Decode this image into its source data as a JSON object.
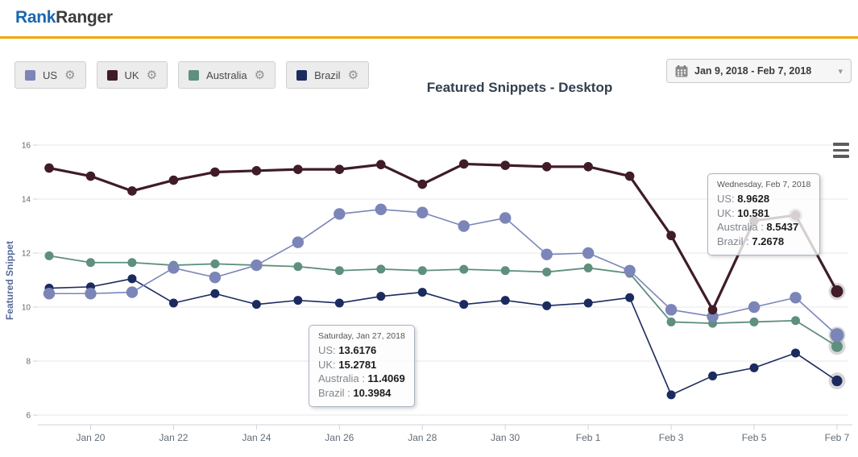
{
  "header": {
    "logo_part1": "Rank",
    "logo_part2": "Ranger"
  },
  "colors": {
    "accent_yellow": "#f3a60a",
    "logo_blue": "#1a67b1",
    "us": "#7b85b8",
    "uk": "#3f1c27",
    "australia": "#5f8f7e",
    "brazil": "#1b2b5f"
  },
  "icons": {
    "gear": "⚙",
    "caret": "▾"
  },
  "legend": [
    {
      "label": "US",
      "color": "#7b85b8"
    },
    {
      "label": "UK",
      "color": "#3f1c27"
    },
    {
      "label": "Australia",
      "color": "#5f8f7e"
    },
    {
      "label": "Brazil",
      "color": "#1b2b5f"
    }
  ],
  "date_picker": {
    "label": "Jan 9, 2018 - Feb 7, 2018"
  },
  "chart_data": {
    "type": "line",
    "title": "Featured Snippets - Desktop",
    "ylabel": "Featured Snippet",
    "ylim": [
      6,
      16
    ],
    "grid": true,
    "y_ticks": [
      16,
      14,
      12,
      10,
      8,
      6
    ],
    "x_tick_labels": [
      "Jan 20",
      "Jan 22",
      "Jan 24",
      "Jan 26",
      "Jan 28",
      "Jan 30",
      "Feb 1",
      "Feb 3",
      "Feb 5",
      "Feb 7"
    ],
    "categories": [
      "Jan 19",
      "Jan 20",
      "Jan 21",
      "Jan 22",
      "Jan 23",
      "Jan 24",
      "Jan 25",
      "Jan 26",
      "Jan 27",
      "Jan 28",
      "Jan 29",
      "Jan 30",
      "Jan 31",
      "Feb 1",
      "Feb 2",
      "Feb 3",
      "Feb 4",
      "Feb 5",
      "Feb 6",
      "Feb 7"
    ],
    "series": [
      {
        "name": "Australia",
        "color": "#5f8f7e",
        "values": [
          11.9,
          11.65,
          11.65,
          11.55,
          11.6,
          11.55,
          11.5,
          11.35,
          11.4069,
          11.35,
          11.4,
          11.35,
          11.3,
          11.45,
          11.25,
          9.45,
          9.4,
          9.45,
          9.5,
          8.5437
        ]
      },
      {
        "name": "Brazil",
        "color": "#1b2b5f",
        "values": [
          10.7,
          10.75,
          11.05,
          10.15,
          10.5,
          10.1,
          10.25,
          10.15,
          10.3984,
          10.55,
          10.1,
          10.25,
          10.05,
          10.15,
          10.35,
          6.75,
          7.45,
          7.75,
          8.3,
          7.2678
        ]
      },
      {
        "name": "US",
        "color": "#7b85b8",
        "values": [
          10.5,
          10.5,
          10.55,
          11.45,
          11.1,
          11.55,
          12.4,
          13.45,
          13.6176,
          13.5,
          13.0,
          13.3,
          11.95,
          12.0,
          11.35,
          9.9,
          9.65,
          10.0,
          10.35,
          8.9628
        ]
      },
      {
        "name": "UK",
        "color": "#3f1c27",
        "values": [
          15.15,
          14.85,
          14.3,
          14.7,
          15.0,
          15.05,
          15.1,
          15.1,
          15.2781,
          14.55,
          15.3,
          15.25,
          15.2,
          15.2,
          14.85,
          12.65,
          9.9,
          13.2,
          13.4,
          10.581
        ]
      }
    ],
    "tooltips": [
      {
        "title": "Saturday, Jan 27, 2018",
        "rows": [
          {
            "label": "US: ",
            "value": "13.6176"
          },
          {
            "label": "UK: ",
            "value": "15.2781"
          },
          {
            "label": "Australia : ",
            "value": "11.4069"
          },
          {
            "label": "Brazil : ",
            "value": "10.3984"
          }
        ]
      },
      {
        "title": "Wednesday, Feb 7, 2018",
        "rows": [
          {
            "label": "US: ",
            "value": "8.9628"
          },
          {
            "label": "UK: ",
            "value": "10.581"
          },
          {
            "label": "Australia : ",
            "value": "8.5437"
          },
          {
            "label": "Brazil : ",
            "value": "7.2678"
          }
        ]
      }
    ]
  }
}
